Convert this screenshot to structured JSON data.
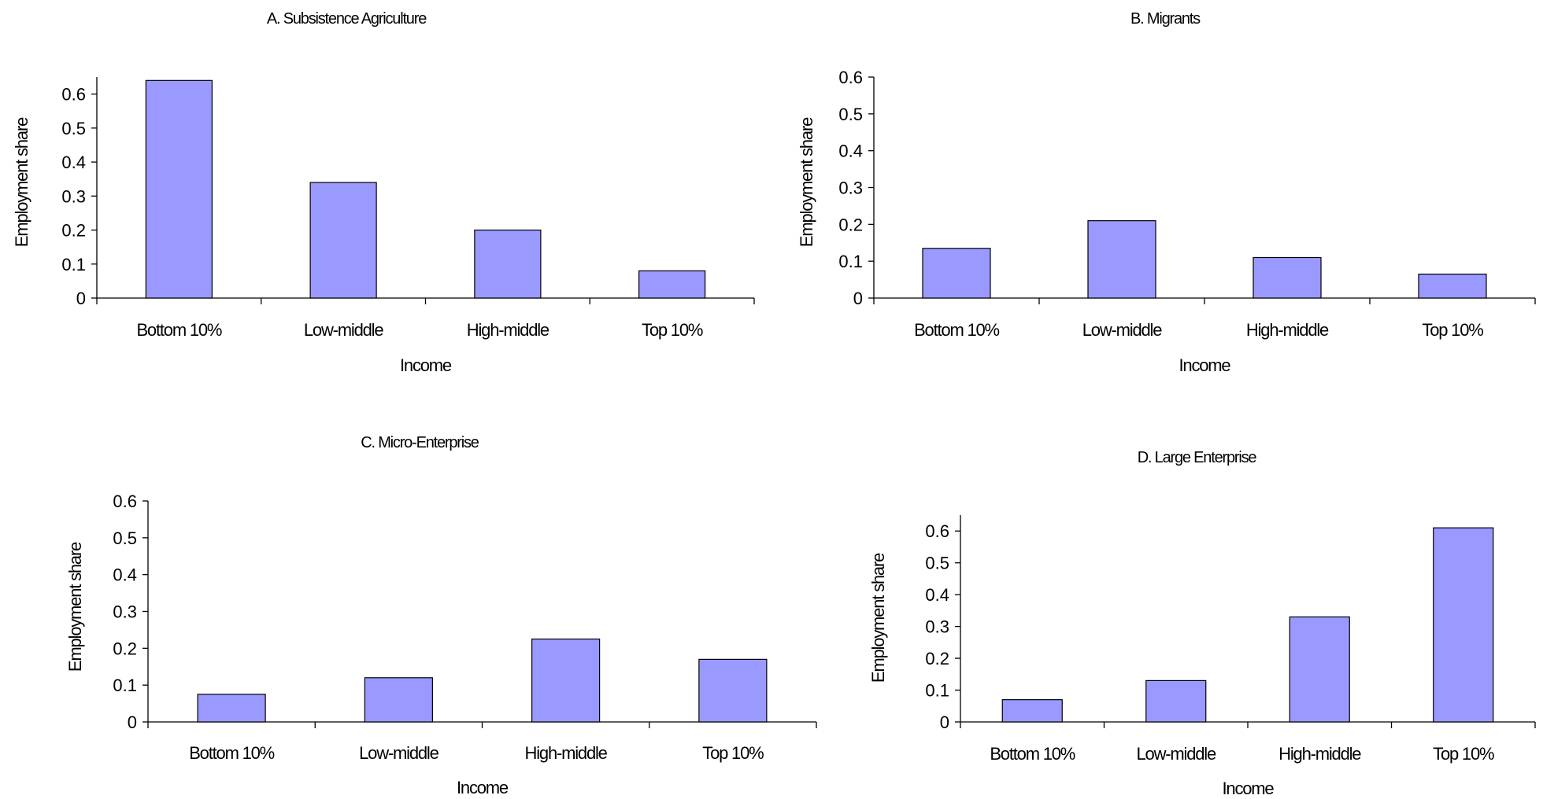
{
  "colors": {
    "bar_fill": "#9999ff",
    "bar_stroke": "#000000",
    "axis": "#000000"
  },
  "chart_data": [
    {
      "type": "bar",
      "title": "A. Subsistence Agriculture",
      "xlabel": "Income",
      "ylabel": "Employment share",
      "categories": [
        "Bottom 10%",
        "Low-middle",
        "High-middle",
        "Top 10%"
      ],
      "values": [
        0.64,
        0.34,
        0.2,
        0.08
      ],
      "ylim": [
        0,
        0.65
      ],
      "yticks": [
        "0",
        "0.1",
        "0.2",
        "0.3",
        "0.4",
        "0.5",
        "0.6"
      ],
      "grid": false,
      "legend": "none"
    },
    {
      "type": "bar",
      "title": "B. Migrants",
      "xlabel": "Income",
      "ylabel": "Employment share",
      "categories": [
        "Bottom 10%",
        "Low-middle",
        "High-middle",
        "Top 10%"
      ],
      "values": [
        0.135,
        0.21,
        0.11,
        0.065
      ],
      "ylim": [
        0,
        0.6
      ],
      "yticks": [
        "0",
        "0.1",
        "0.2",
        "0.3",
        "0.4",
        "0.5",
        "0.6"
      ],
      "grid": false,
      "legend": "none"
    },
    {
      "type": "bar",
      "title": "C. Micro-Enterprise",
      "xlabel": "Income",
      "ylabel": "Employment share",
      "categories": [
        "Bottom 10%",
        "Low-middle",
        "High-middle",
        "Top 10%"
      ],
      "values": [
        0.075,
        0.12,
        0.225,
        0.17
      ],
      "ylim": [
        0,
        0.6
      ],
      "yticks": [
        "0",
        "0.1",
        "0.2",
        "0.3",
        "0.4",
        "0.5",
        "0.6"
      ],
      "grid": false,
      "legend": "none"
    },
    {
      "type": "bar",
      "title": "D. Large Enterprise",
      "xlabel": "Income",
      "ylabel": "Employment share",
      "categories": [
        "Bottom 10%",
        "Low-middle",
        "High-middle",
        "Top 10%"
      ],
      "values": [
        0.07,
        0.13,
        0.33,
        0.61
      ],
      "ylim": [
        0,
        0.65
      ],
      "yticks": [
        "0",
        "0.1",
        "0.2",
        "0.3",
        "0.4",
        "0.5",
        "0.6"
      ],
      "grid": false,
      "legend": "none"
    }
  ]
}
